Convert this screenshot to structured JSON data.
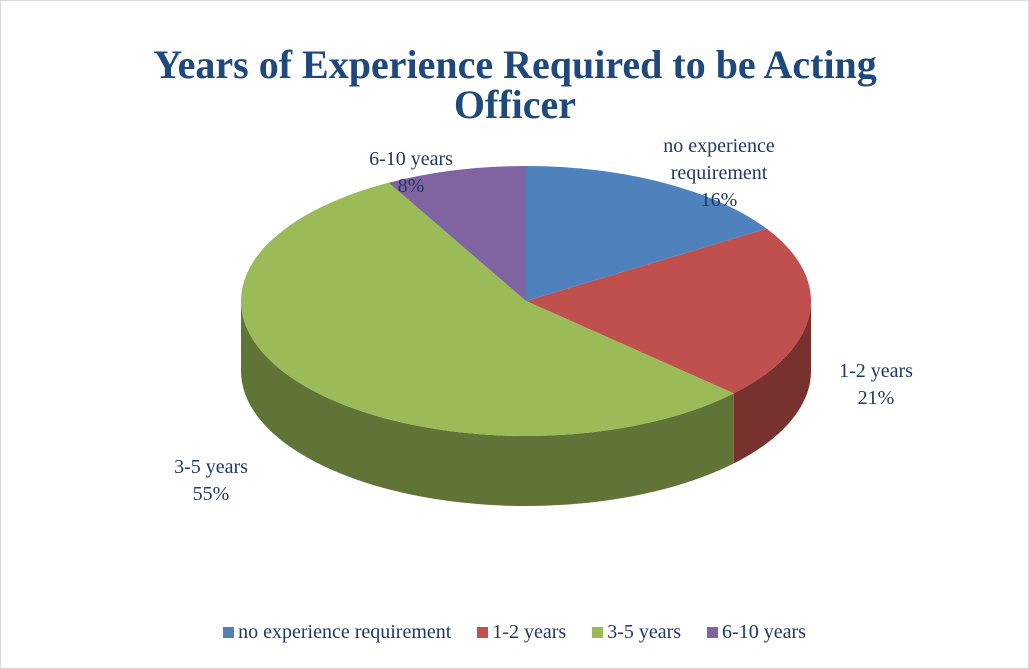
{
  "chart_data": {
    "type": "pie",
    "title": "Years of Experience Required to be Acting Officer",
    "categories": [
      "no experience requirement",
      "1-2 years",
      "3-5 years",
      "6-10 years"
    ],
    "values": [
      16,
      21,
      55,
      8
    ],
    "value_labels": [
      "16%",
      "21%",
      "55%",
      "8%"
    ],
    "colors": [
      "#4f81bd",
      "#c0504d",
      "#9bbb59",
      "#8064a2"
    ],
    "legend": "bottom"
  }
}
